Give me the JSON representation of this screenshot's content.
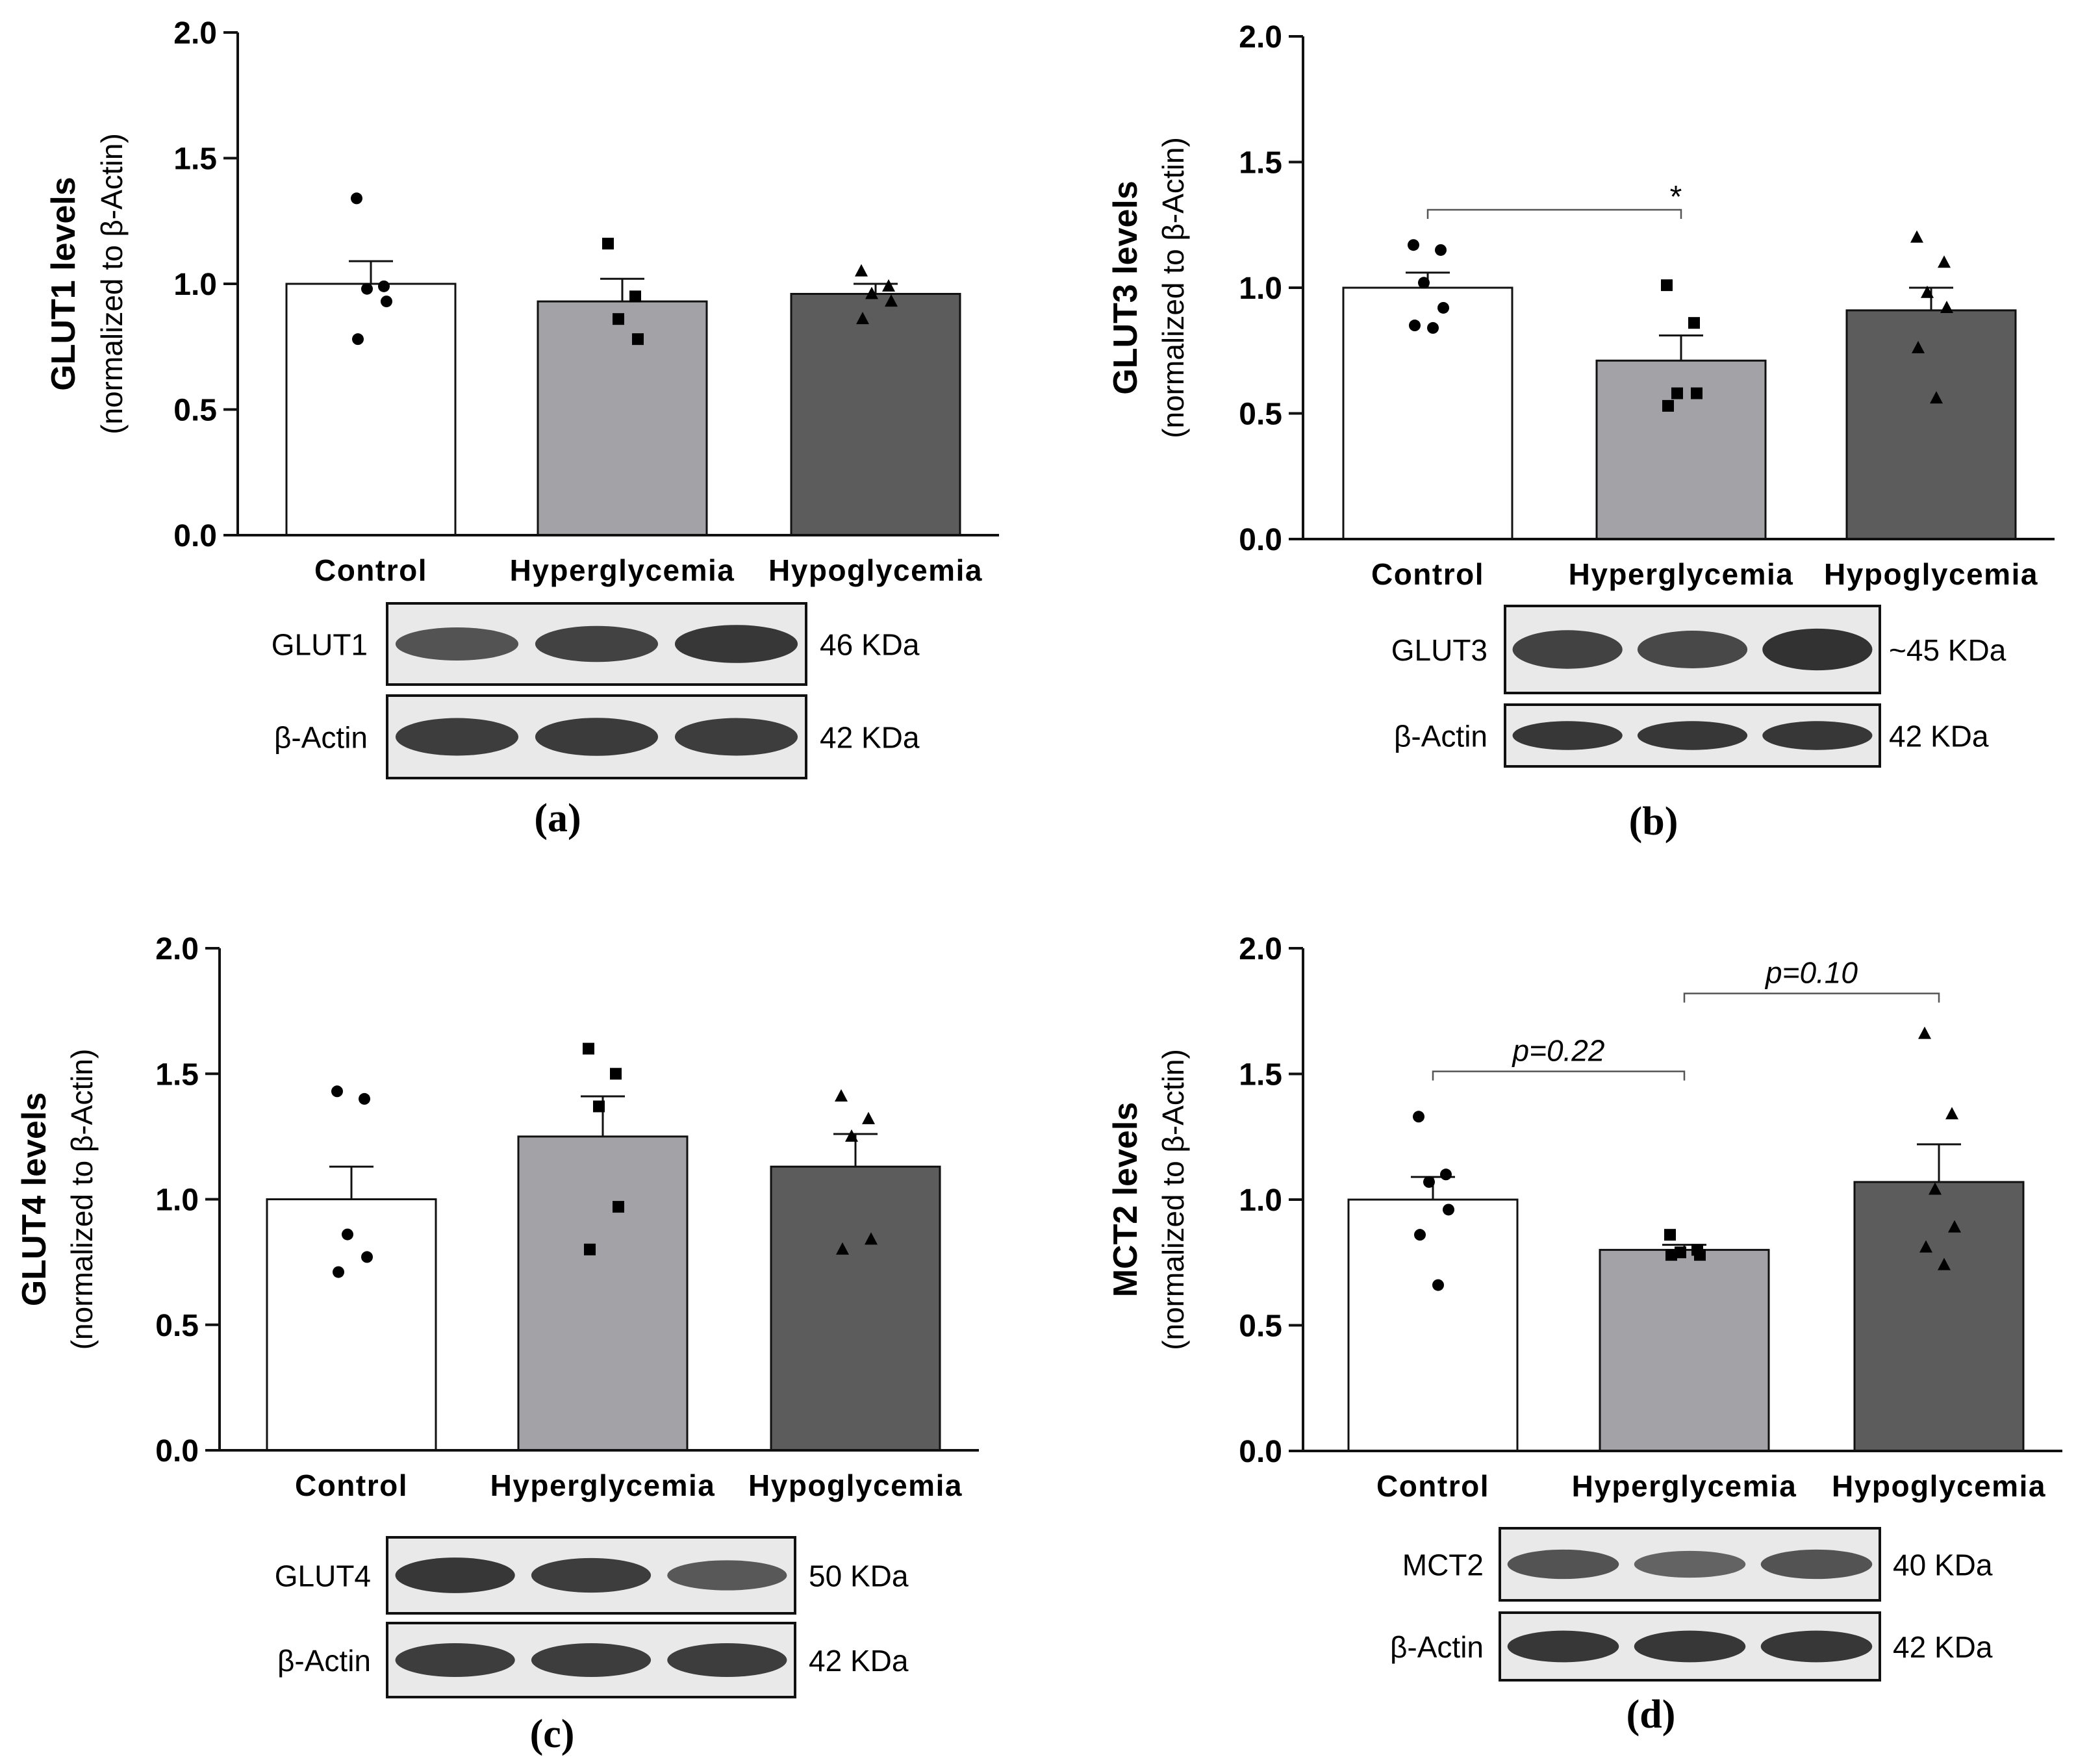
{
  "chart_data": [
    {
      "type": "bar",
      "panel": "(a)",
      "ylabel": "GLUT1 levels",
      "ylabel_sub": "(normalized to β-Actin)",
      "ylim": [
        0,
        2.0
      ],
      "yticks": [
        "0.0",
        "0.5",
        "1.0",
        "1.5",
        "2.0"
      ],
      "categories": [
        "Control",
        "Hyperglycemia",
        "Hypoglycemia"
      ],
      "values": [
        1.0,
        0.93,
        0.96
      ],
      "errors": [
        0.09,
        0.09,
        0.04
      ],
      "bar_colors": [
        "#ffffff",
        "#a3a3a7",
        "#5c5c5c"
      ],
      "points": [
        [
          1.34,
          0.99,
          0.98,
          0.93,
          0.78
        ],
        [
          1.16,
          0.95,
          0.86,
          0.78
        ],
        [
          1.05,
          0.99,
          0.96,
          0.93,
          0.86
        ]
      ],
      "markers": [
        "circle",
        "square",
        "triangle"
      ],
      "comparisons": [],
      "blot": [
        {
          "label": "GLUT1",
          "kda": "46 KDa",
          "intensity": [
            0.7,
            0.85,
            0.95
          ]
        },
        {
          "label": "β-Actin",
          "kda": "42 KDa",
          "intensity": [
            0.9,
            0.92,
            0.9
          ]
        }
      ]
    },
    {
      "type": "bar",
      "panel": "(b)",
      "ylabel": "GLUT3 levels",
      "ylabel_sub": "(normalized to β-Actin)",
      "ylim": [
        0,
        2.0
      ],
      "yticks": [
        "0.0",
        "0.5",
        "1.0",
        "1.5",
        "2.0"
      ],
      "categories": [
        "Control",
        "Hyperglycemia",
        "Hypoglycemia"
      ],
      "values": [
        1.0,
        0.71,
        0.91
      ],
      "errors": [
        0.06,
        0.1,
        0.09
      ],
      "bar_colors": [
        "#ffffff",
        "#a3a3a7",
        "#5c5c5c"
      ],
      "points": [
        [
          1.17,
          1.15,
          1.02,
          0.92,
          0.85,
          0.84
        ],
        [
          1.01,
          0.86,
          0.58,
          0.58,
          0.53
        ],
        [
          1.2,
          1.1,
          0.98,
          0.92,
          0.76,
          0.56
        ]
      ],
      "markers": [
        "circle",
        "square",
        "triangle"
      ],
      "comparisons": [
        {
          "from": 0,
          "to": 1,
          "y": 1.31,
          "label": "*"
        }
      ],
      "blot": [
        {
          "label": "GLUT3",
          "kda": "~45 KDa",
          "intensity": [
            0.85,
            0.8,
            1.0
          ]
        },
        {
          "label": "β-Actin",
          "kda": "42 KDa",
          "intensity": [
            0.95,
            0.95,
            0.95
          ]
        }
      ]
    },
    {
      "type": "bar",
      "panel": "(c)",
      "ylabel": "GLUT4 levels",
      "ylabel_sub": "(normalized to β-Actin)",
      "ylim": [
        0,
        2.0
      ],
      "yticks": [
        "0.0",
        "0.5",
        "1.0",
        "1.5",
        "2.0"
      ],
      "categories": [
        "Control",
        "Hyperglycemia",
        "Hypoglycemia"
      ],
      "values": [
        1.0,
        1.25,
        1.13
      ],
      "errors": [
        0.13,
        0.16,
        0.13
      ],
      "bar_colors": [
        "#ffffff",
        "#a3a3a7",
        "#5c5c5c"
      ],
      "points": [
        [
          1.43,
          1.4,
          0.86,
          0.77,
          0.71
        ],
        [
          1.6,
          1.5,
          1.37,
          0.97,
          0.8
        ],
        [
          1.41,
          1.32,
          1.25,
          0.84,
          0.8
        ]
      ],
      "markers": [
        "circle",
        "square",
        "triangle"
      ],
      "comparisons": [],
      "blot": [
        {
          "label": "GLUT4",
          "kda": "50 KDa",
          "intensity": [
            0.95,
            0.9,
            0.65
          ]
        },
        {
          "label": "β-Actin",
          "kda": "42 KDa",
          "intensity": [
            0.9,
            0.9,
            0.9
          ]
        }
      ]
    },
    {
      "type": "bar",
      "panel": "(d)",
      "ylabel": "MCT2 levels",
      "ylabel_sub": "(normalized to β-Actin)",
      "ylim": [
        0,
        2.0
      ],
      "yticks": [
        "0.0",
        "0.5",
        "1.0",
        "1.5",
        "2.0"
      ],
      "categories": [
        "Control",
        "Hyperglycemia",
        "Hypoglycemia"
      ],
      "values": [
        1.0,
        0.8,
        1.07
      ],
      "errors": [
        0.09,
        0.02,
        0.15
      ],
      "bar_colors": [
        "#ffffff",
        "#a3a3a7",
        "#5c5c5c"
      ],
      "points": [
        [
          1.33,
          1.1,
          1.07,
          0.96,
          0.86,
          0.66
        ],
        [
          0.86,
          0.8,
          0.79,
          0.78,
          0.78
        ],
        [
          1.66,
          1.34,
          1.04,
          0.89,
          0.81,
          0.74
        ]
      ],
      "markers": [
        "circle",
        "square",
        "triangle"
      ],
      "comparisons": [
        {
          "from": 0,
          "to": 1,
          "y": 1.51,
          "label": "p=0.22"
        },
        {
          "from": 1,
          "to": 2,
          "y": 1.82,
          "label": "p=0.10"
        }
      ],
      "blot": [
        {
          "label": "MCT2",
          "kda": "40 KDa",
          "intensity": [
            0.7,
            0.55,
            0.7
          ]
        },
        {
          "label": "β-Actin",
          "kda": "42 KDa",
          "intensity": [
            0.95,
            0.95,
            0.95
          ]
        }
      ]
    }
  ]
}
